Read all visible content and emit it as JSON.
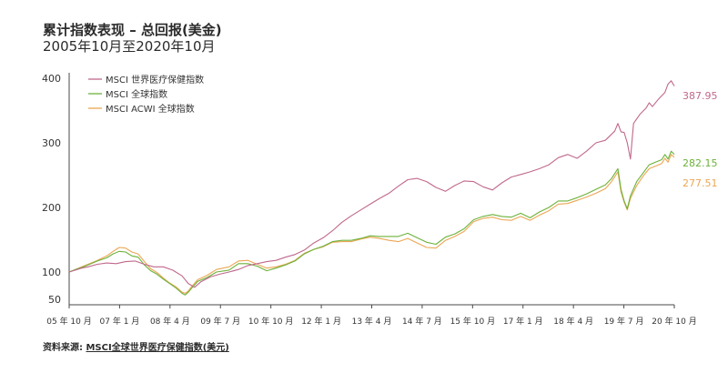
{
  "title": "累计指数表现 – 总回报(美金)",
  "subtitle": "2005年10月至2020年10月",
  "source_prefix": "资料来源: ",
  "source_link": "MSCI全球世界医疗保健指数(美元)",
  "chart_data": {
    "type": "line",
    "xlabel": "",
    "ylabel": "",
    "x_range": [
      "2005-10",
      "2020-10"
    ],
    "ylim": [
      50,
      400
    ],
    "y_ticks": [
      50,
      100,
      200,
      300,
      400
    ],
    "x_ticks": [
      "05 年 10 月",
      "07 年 1 月",
      "08 年 4 月",
      "09 年 7 月",
      "10 年 10 月",
      "12 年 1 月",
      "13 年 4 月",
      "14 年 7 月",
      "15 年 10 月",
      "17 年 1 月",
      "18 年 4 月",
      "19 年 7 月",
      "20 年 10 月"
    ],
    "grid": false,
    "legend_position": "top-left",
    "series": [
      {
        "name": "MSCI 世界医疗保健指数",
        "color": "#c0688c",
        "end_label": "387.95",
        "points": [
          [
            0,
            100
          ],
          [
            2,
            103
          ],
          [
            4,
            106
          ],
          [
            6,
            108
          ],
          [
            9,
            112
          ],
          [
            12,
            114
          ],
          [
            15,
            113
          ],
          [
            18,
            116
          ],
          [
            21,
            117
          ],
          [
            24,
            112
          ],
          [
            27,
            108
          ],
          [
            30,
            108
          ],
          [
            33,
            103
          ],
          [
            36,
            93
          ],
          [
            38,
            79
          ],
          [
            40,
            72
          ],
          [
            42,
            82
          ],
          [
            45,
            91
          ],
          [
            48,
            96
          ],
          [
            51,
            100
          ],
          [
            54,
            104
          ],
          [
            57,
            110
          ],
          [
            60,
            113
          ],
          [
            63,
            116
          ],
          [
            66,
            118
          ],
          [
            69,
            123
          ],
          [
            72,
            127
          ],
          [
            75,
            134
          ],
          [
            78,
            145
          ],
          [
            81,
            153
          ],
          [
            84,
            164
          ],
          [
            87,
            177
          ],
          [
            90,
            187
          ],
          [
            93,
            196
          ],
          [
            96,
            205
          ],
          [
            99,
            214
          ],
          [
            102,
            222
          ],
          [
            105,
            233
          ],
          [
            108,
            243
          ],
          [
            111,
            245
          ],
          [
            114,
            240
          ],
          [
            117,
            231
          ],
          [
            120,
            225
          ],
          [
            123,
            234
          ],
          [
            126,
            241
          ],
          [
            129,
            240
          ],
          [
            132,
            232
          ],
          [
            135,
            227
          ],
          [
            138,
            238
          ],
          [
            141,
            247
          ],
          [
            144,
            251
          ],
          [
            147,
            255
          ],
          [
            150,
            260
          ],
          [
            153,
            266
          ],
          [
            156,
            277
          ],
          [
            159,
            282
          ],
          [
            162,
            276
          ],
          [
            165,
            287
          ],
          [
            168,
            300
          ],
          [
            171,
            304
          ],
          [
            174,
            318
          ],
          [
            175,
            330
          ],
          [
            176,
            317
          ],
          [
            177,
            316
          ],
          [
            178,
            300
          ],
          [
            179,
            275
          ],
          [
            180,
            330
          ],
          [
            182,
            344
          ],
          [
            184,
            354
          ],
          [
            185,
            362
          ],
          [
            186,
            356
          ],
          [
            188,
            368
          ],
          [
            190,
            378
          ],
          [
            191,
            391
          ],
          [
            192,
            396
          ],
          [
            193,
            387.95
          ]
        ]
      },
      {
        "name": "MSCI 全球指数",
        "color": "#6cb23a",
        "end_label": "282.15",
        "points": [
          [
            0,
            100
          ],
          [
            2,
            104
          ],
          [
            4,
            107
          ],
          [
            6,
            111
          ],
          [
            9,
            117
          ],
          [
            12,
            122
          ],
          [
            14,
            128
          ],
          [
            16,
            132
          ],
          [
            18,
            131
          ],
          [
            20,
            125
          ],
          [
            22,
            123
          ],
          [
            24,
            111
          ],
          [
            26,
            102
          ],
          [
            28,
            96
          ],
          [
            30,
            87
          ],
          [
            32,
            79
          ],
          [
            34,
            71
          ],
          [
            36,
            61
          ],
          [
            37,
            58
          ],
          [
            38,
            63
          ],
          [
            39,
            70
          ],
          [
            41,
            83
          ],
          [
            44,
            90
          ],
          [
            47,
            100
          ],
          [
            51,
            103
          ],
          [
            54,
            113
          ],
          [
            57,
            113
          ],
          [
            60,
            109
          ],
          [
            63,
            102
          ],
          [
            66,
            106
          ],
          [
            69,
            111
          ],
          [
            72,
            117
          ],
          [
            75,
            128
          ],
          [
            78,
            135
          ],
          [
            81,
            140
          ],
          [
            84,
            147
          ],
          [
            87,
            149
          ],
          [
            90,
            149
          ],
          [
            93,
            152
          ],
          [
            96,
            156
          ],
          [
            99,
            155
          ],
          [
            102,
            155
          ],
          [
            105,
            155
          ],
          [
            108,
            160
          ],
          [
            111,
            153
          ],
          [
            114,
            146
          ],
          [
            117,
            143
          ],
          [
            120,
            154
          ],
          [
            123,
            159
          ],
          [
            126,
            167
          ],
          [
            129,
            181
          ],
          [
            132,
            186
          ],
          [
            135,
            189
          ],
          [
            138,
            186
          ],
          [
            141,
            185
          ],
          [
            144,
            191
          ],
          [
            147,
            184
          ],
          [
            150,
            193
          ],
          [
            153,
            200
          ],
          [
            156,
            210
          ],
          [
            159,
            210
          ],
          [
            162,
            215
          ],
          [
            165,
            221
          ],
          [
            168,
            228
          ],
          [
            171,
            235
          ],
          [
            173,
            245
          ],
          [
            175,
            260
          ],
          [
            176,
            228
          ],
          [
            177,
            210
          ],
          [
            178,
            198
          ],
          [
            179,
            218
          ],
          [
            181,
            240
          ],
          [
            183,
            253
          ],
          [
            185,
            266
          ],
          [
            187,
            270
          ],
          [
            189,
            274
          ],
          [
            190,
            282
          ],
          [
            191,
            275
          ],
          [
            192,
            287
          ],
          [
            193,
            282.15
          ]
        ]
      },
      {
        "name": "MSCI ACWI 全球指数",
        "color": "#eca654",
        "end_label": "277.51",
        "points": [
          [
            0,
            100
          ],
          [
            2,
            104
          ],
          [
            4,
            108
          ],
          [
            6,
            112
          ],
          [
            9,
            118
          ],
          [
            12,
            125
          ],
          [
            14,
            132
          ],
          [
            16,
            138
          ],
          [
            18,
            137
          ],
          [
            20,
            131
          ],
          [
            22,
            128
          ],
          [
            24,
            116
          ],
          [
            26,
            105
          ],
          [
            28,
            99
          ],
          [
            30,
            89
          ],
          [
            32,
            80
          ],
          [
            34,
            73
          ],
          [
            36,
            63
          ],
          [
            37,
            61
          ],
          [
            38,
            65
          ],
          [
            39,
            73
          ],
          [
            41,
            86
          ],
          [
            44,
            94
          ],
          [
            47,
            104
          ],
          [
            51,
            108
          ],
          [
            54,
            117
          ],
          [
            57,
            118
          ],
          [
            60,
            112
          ],
          [
            63,
            106
          ],
          [
            66,
            108
          ],
          [
            69,
            112
          ],
          [
            72,
            118
          ],
          [
            75,
            129
          ],
          [
            78,
            135
          ],
          [
            81,
            139
          ],
          [
            84,
            146
          ],
          [
            87,
            147
          ],
          [
            90,
            147
          ],
          [
            93,
            151
          ],
          [
            96,
            154
          ],
          [
            99,
            152
          ],
          [
            102,
            149
          ],
          [
            105,
            147
          ],
          [
            108,
            152
          ],
          [
            111,
            145
          ],
          [
            114,
            138
          ],
          [
            117,
            137
          ],
          [
            120,
            149
          ],
          [
            123,
            155
          ],
          [
            126,
            163
          ],
          [
            129,
            178
          ],
          [
            132,
            183
          ],
          [
            135,
            185
          ],
          [
            138,
            181
          ],
          [
            141,
            180
          ],
          [
            144,
            186
          ],
          [
            147,
            180
          ],
          [
            150,
            188
          ],
          [
            153,
            195
          ],
          [
            156,
            205
          ],
          [
            159,
            206
          ],
          [
            162,
            211
          ],
          [
            165,
            216
          ],
          [
            168,
            222
          ],
          [
            171,
            229
          ],
          [
            173,
            240
          ],
          [
            175,
            255
          ],
          [
            176,
            224
          ],
          [
            177,
            208
          ],
          [
            178,
            196
          ],
          [
            179,
            214
          ],
          [
            181,
            234
          ],
          [
            183,
            248
          ],
          [
            185,
            260
          ],
          [
            187,
            264
          ],
          [
            189,
            268
          ],
          [
            190,
            276
          ],
          [
            191,
            270
          ],
          [
            192,
            282
          ],
          [
            193,
            277.51
          ]
        ]
      }
    ]
  }
}
